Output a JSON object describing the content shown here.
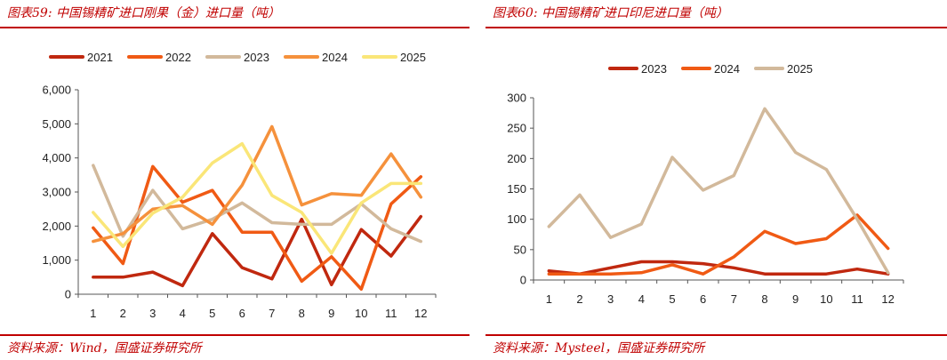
{
  "chart_data": [
    {
      "type": "line",
      "title": "图表59: 中国锡精矿进口刚果（金）进口量（吨）",
      "source": "资料来源：Wind，国盛证券研究所",
      "xlabel": "",
      "ylabel": "",
      "x": [
        "1",
        "2",
        "3",
        "4",
        "5",
        "6",
        "7",
        "8",
        "9",
        "10",
        "11",
        "12"
      ],
      "ylim": [
        0,
        6000
      ],
      "yticks": [
        0,
        1000,
        2000,
        3000,
        4000,
        5000,
        6000
      ],
      "ytick_labels": [
        "0",
        "1,000",
        "2,000",
        "3,000",
        "4,000",
        "5,000",
        "6,000"
      ],
      "legend_position": "top",
      "series": [
        {
          "name": "2021",
          "color": "#c0280f",
          "values": [
            500,
            500,
            650,
            250,
            1780,
            780,
            450,
            2200,
            280,
            1900,
            1120,
            2280
          ]
        },
        {
          "name": "2022",
          "color": "#f05a14",
          "values": [
            1950,
            900,
            3750,
            2700,
            3050,
            1820,
            1820,
            380,
            1100,
            150,
            2650,
            3450
          ]
        },
        {
          "name": "2023",
          "color": "#d2b99b",
          "values": [
            3780,
            1700,
            3050,
            1920,
            2200,
            2680,
            2100,
            2050,
            2050,
            2650,
            1920,
            1550
          ]
        },
        {
          "name": "2024",
          "color": "#f5913c",
          "values": [
            1550,
            1780,
            2500,
            2600,
            2050,
            3200,
            4920,
            2620,
            2950,
            2900,
            4120,
            2850
          ]
        },
        {
          "name": "2025",
          "color": "#fae678",
          "values": [
            2400,
            1400,
            2380,
            2850,
            3850,
            4420,
            2900,
            2400,
            1200,
            2680,
            3250,
            3250
          ]
        }
      ]
    },
    {
      "type": "line",
      "title": "图表60: 中国锡精矿进口印尼进口量（吨）",
      "source": "资料来源：Mysteel，国盛证券研究所",
      "xlabel": "",
      "ylabel": "",
      "x": [
        "1",
        "2",
        "3",
        "4",
        "5",
        "6",
        "7",
        "8",
        "9",
        "10",
        "11",
        "12"
      ],
      "ylim": [
        0,
        300
      ],
      "yticks": [
        0,
        50,
        100,
        150,
        200,
        250,
        300
      ],
      "ytick_labels": [
        "0",
        "50",
        "100",
        "150",
        "200",
        "250",
        "300"
      ],
      "legend_position": "top",
      "series": [
        {
          "name": "2023",
          "color": "#c0280f",
          "values": [
            15,
            10,
            20,
            30,
            30,
            27,
            20,
            10,
            10,
            10,
            18,
            10
          ]
        },
        {
          "name": "2024",
          "color": "#f05a14",
          "values": [
            10,
            10,
            10,
            12,
            25,
            10,
            38,
            80,
            60,
            68,
            107,
            52
          ]
        },
        {
          "name": "2025",
          "color": "#d2b99b",
          "values": [
            88,
            140,
            70,
            92,
            202,
            148,
            172,
            282,
            210,
            182,
            100,
            12
          ]
        }
      ]
    }
  ]
}
